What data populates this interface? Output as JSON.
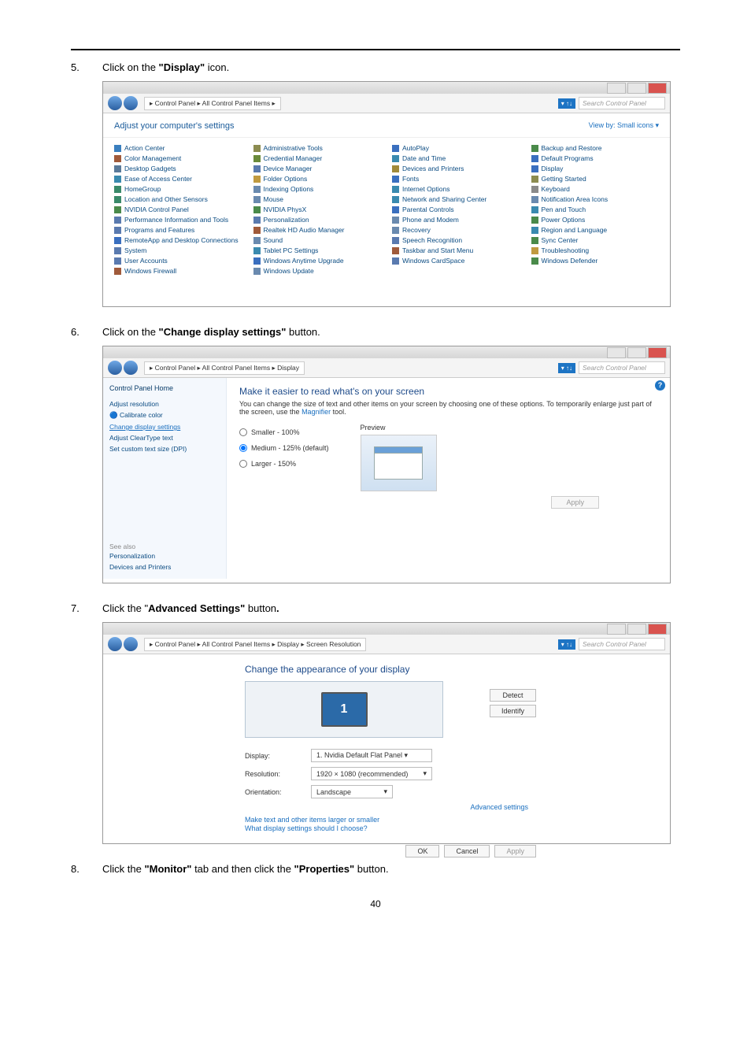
{
  "steps": {
    "s5": "Click on the ",
    "s5b": "\"Display\"",
    "s5c": " icon.",
    "s6": "Click on the ",
    "s6b": "\"Change display settings\"",
    "s6c": " button.",
    "s7": "Click the \"",
    "s7b": "Advanced Settings\"",
    "s7c": " button",
    "s8a": "Click the ",
    "s8b": "\"Monitor\"",
    "s8c": " tab and then click the ",
    "s8d": "\"Properties\"",
    "s8e": " button."
  },
  "nums": {
    "n5": "5.",
    "n6": "6.",
    "n7": "7.",
    "n8": "8."
  },
  "win1": {
    "path": "▸ Control Panel ▸ All Control Panel Items ▸",
    "search": "Search Control Panel",
    "headline": "Adjust your computer's settings",
    "view": "View by:   Small icons ▾",
    "items": [
      [
        "Action Center",
        "#3a7fbf"
      ],
      [
        "Administrative Tools",
        "#8c8c50"
      ],
      [
        "AutoPlay",
        "#3a6fbf"
      ],
      [
        "Backup and Restore",
        "#4a8a4a"
      ],
      [
        "Color Management",
        "#a05a3a"
      ],
      [
        "Credential Manager",
        "#6a8a3a"
      ],
      [
        "Date and Time",
        "#3a8aaf"
      ],
      [
        "Default Programs",
        "#3a6fbf"
      ],
      [
        "Desktop Gadgets",
        "#5a7a9a"
      ],
      [
        "Device Manager",
        "#5a7aaf"
      ],
      [
        "Devices and Printers",
        "#a08a3a"
      ],
      [
        "Display",
        "#3a6fbf"
      ],
      [
        "Ease of Access Center",
        "#3a8aaf"
      ],
      [
        "Folder Options",
        "#c09a40"
      ],
      [
        "Fonts",
        "#3a6fbf"
      ],
      [
        "Getting Started",
        "#8c8c50"
      ],
      [
        "HomeGroup",
        "#3a8a6a"
      ],
      [
        "Indexing Options",
        "#6a8aaf"
      ],
      [
        "Internet Options",
        "#3a8aaf"
      ],
      [
        "Keyboard",
        "#8a8a8a"
      ],
      [
        "Location and Other Sensors",
        "#3a8a6a"
      ],
      [
        "Mouse",
        "#6a8aaf"
      ],
      [
        "Network and Sharing Center",
        "#3a8aaf"
      ],
      [
        "Notification Area Icons",
        "#6a8aaf"
      ],
      [
        "NVIDIA Control Panel",
        "#4a8a4a"
      ],
      [
        "NVIDIA PhysX",
        "#4a8a4a"
      ],
      [
        "Parental Controls",
        "#3a6fbf"
      ],
      [
        "Pen and Touch",
        "#3a8aaf"
      ],
      [
        "Performance Information and Tools",
        "#5a7aaf"
      ],
      [
        "Personalization",
        "#5a7aaf"
      ],
      [
        "Phone and Modem",
        "#6a8aaf"
      ],
      [
        "Power Options",
        "#4a8a4a"
      ],
      [
        "Programs and Features",
        "#5a7aaf"
      ],
      [
        "Realtek HD Audio Manager",
        "#a05a3a"
      ],
      [
        "Recovery",
        "#6a8aaf"
      ],
      [
        "Region and Language",
        "#3a8aaf"
      ],
      [
        "RemoteApp and Desktop Connections",
        "#3a6fbf"
      ],
      [
        "Sound",
        "#6a8aaf"
      ],
      [
        "Speech Recognition",
        "#5a7aaf"
      ],
      [
        "Sync Center",
        "#4a8a4a"
      ],
      [
        "System",
        "#5a7aaf"
      ],
      [
        "Tablet PC Settings",
        "#3a8aaf"
      ],
      [
        "Taskbar and Start Menu",
        "#a05a3a"
      ],
      [
        "Troubleshooting",
        "#c09a40"
      ],
      [
        "User Accounts",
        "#5a7aaf"
      ],
      [
        "Windows Anytime Upgrade",
        "#3a6fbf"
      ],
      [
        "Windows CardSpace",
        "#5a7aaf"
      ],
      [
        "Windows Defender",
        "#4a8a4a"
      ],
      [
        "Windows Firewall",
        "#a05a3a"
      ],
      [
        "Windows Update",
        "#6a8aaf"
      ],
      [
        "",
        ""
      ],
      [
        "",
        ""
      ]
    ]
  },
  "win2": {
    "path": "▸ Control Panel ▸ All Control Panel Items ▸ Display",
    "search": "Search Control Panel",
    "side": {
      "home": "Control Panel Home",
      "links": [
        "Adjust resolution",
        "Calibrate color",
        "Change display settings",
        "Adjust ClearType text",
        "Set custom text size (DPI)"
      ],
      "see": "See also",
      "see_links": [
        "Personalization",
        "Devices and Printers"
      ]
    },
    "title": "Make it easier to read what's on your screen",
    "desc1": "You can change the size of text and other items on your screen by choosing one of these options. To temporarily enlarge just part of the screen, use the ",
    "mag": "Magnifier",
    "desc2": " tool.",
    "r1": "Smaller - 100%",
    "r2": "Medium - 125% (default)",
    "r3": "Larger - 150%",
    "preview": "Preview",
    "apply": "Apply"
  },
  "win3": {
    "path": "▸ Control Panel ▸ All Control Panel Items ▸ Display ▸ Screen Resolution",
    "search": "Search Control Panel",
    "title": "Change the appearance of your display",
    "b_detect": "Detect",
    "b_identify": "Identify",
    "d_l": "Display:",
    "d_v": "1. Nvidia Default Flat Panel ▾",
    "r_l": "Resolution:",
    "r_v": "1920 × 1080 (recommended)",
    "o_l": "Orientation:",
    "o_v": "Landscape",
    "adv": "Advanced settings",
    "l1": "Make text and other items larger or smaller",
    "l2": "What display settings should I choose?",
    "ok": "OK",
    "cancel": "Cancel",
    "apply": "Apply",
    "mon": "1"
  },
  "page": "40"
}
